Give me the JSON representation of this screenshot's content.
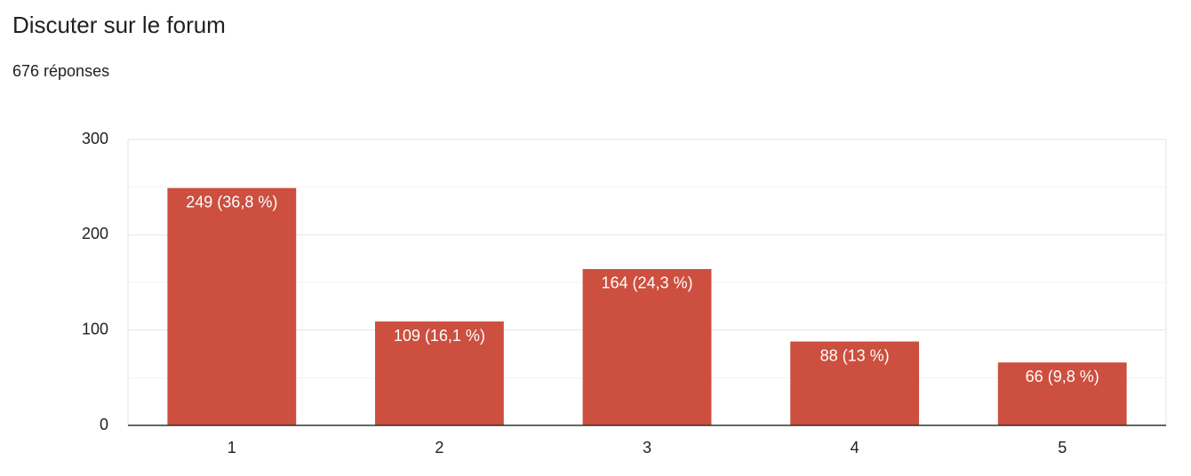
{
  "chart_data": {
    "type": "bar",
    "title": "Discuter sur le forum",
    "subtitle": "676 réponses",
    "categories": [
      "1",
      "2",
      "3",
      "4",
      "5"
    ],
    "values": [
      249,
      109,
      164,
      88,
      66
    ],
    "value_labels": [
      "249 (36,8 %)",
      "109 (16,1 %)",
      "164 (24,3 %)",
      "88 (13 %)",
      "66 (9,8 %)"
    ],
    "color": "#cc4f3f",
    "ylim": [
      0,
      300
    ],
    "yticks": [
      0,
      100,
      200,
      300
    ],
    "minor_yticks": [
      50,
      150,
      250
    ],
    "grid": true
  }
}
